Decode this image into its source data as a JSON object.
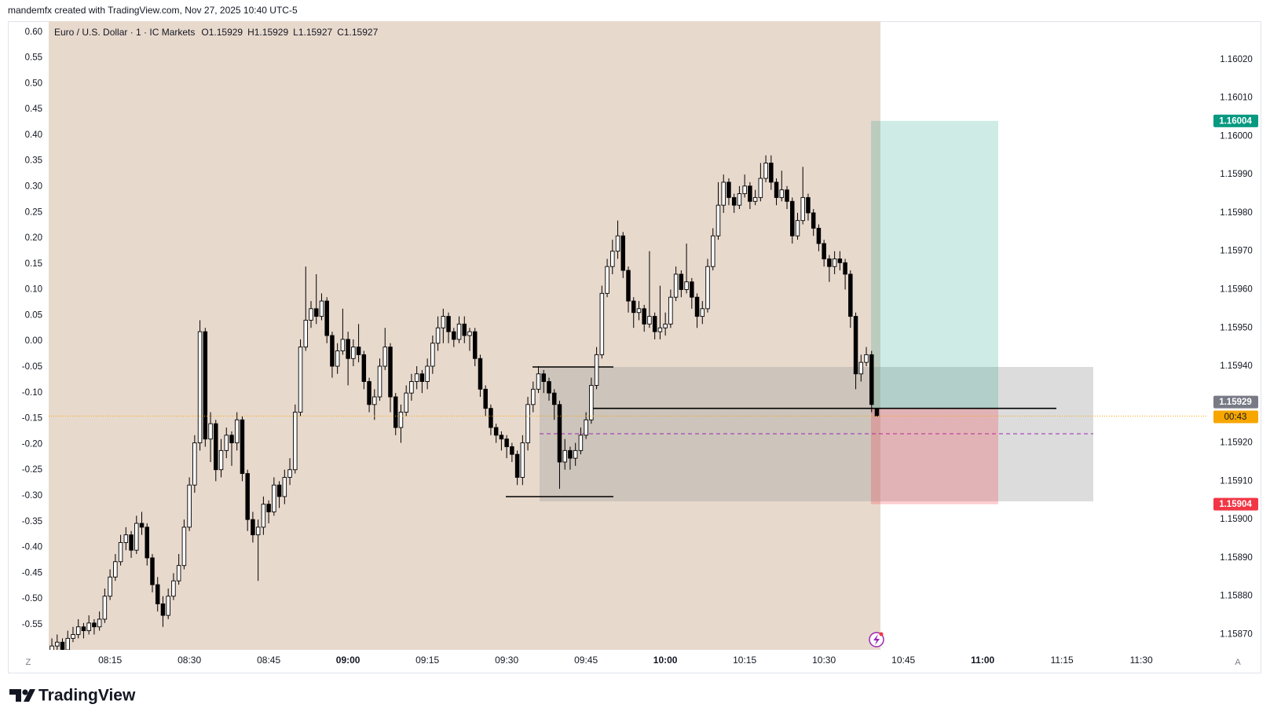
{
  "header": {
    "caption": "mandemfx created with TradingView.com, Nov 27, 2025 10:40 UTC-5"
  },
  "chart_data": {
    "type": "candlestick",
    "symbol": "Euro / U.S. Dollar · 1 · IC Markets",
    "legend_values": [
      "O1.15929",
      "H1.15929",
      "L1.15927",
      "C1.15927"
    ],
    "x": [
      484,
      485,
      486,
      487,
      488,
      489,
      490,
      491,
      492,
      493,
      494,
      495,
      496,
      497,
      498,
      499,
      500,
      501,
      502,
      503,
      504,
      505,
      506,
      507,
      508,
      509,
      510,
      511,
      512,
      513,
      514,
      515,
      516,
      517,
      518,
      519,
      520,
      521,
      522,
      523,
      524,
      525,
      526,
      527,
      528,
      529,
      530,
      531,
      532,
      533,
      534,
      535,
      536,
      537,
      538,
      539,
      540,
      541,
      542,
      543,
      544,
      545,
      546,
      547,
      548,
      549,
      550,
      551,
      552,
      553,
      554,
      555,
      556,
      557,
      558,
      559,
      560,
      561,
      562,
      563,
      564,
      565,
      566,
      567,
      568,
      569,
      570,
      571,
      572,
      573,
      574,
      575,
      576,
      577,
      578,
      579,
      580,
      581,
      582,
      583,
      584,
      585,
      586,
      587,
      588,
      589,
      590,
      591,
      592,
      593,
      594,
      595,
      596,
      597,
      598,
      599,
      600,
      601,
      602,
      603,
      604,
      605,
      606,
      607,
      608,
      609,
      610,
      611,
      612,
      613,
      614,
      615,
      616,
      617,
      618,
      619,
      620,
      621,
      622,
      623,
      624,
      625,
      626,
      627,
      628,
      629,
      630,
      631,
      632,
      633,
      634,
      635,
      636,
      637,
      638,
      639,
      640
    ],
    "candles": [
      [
        1.15865,
        1.15869,
        1.15863,
        1.15867
      ],
      [
        1.15867,
        1.1587,
        1.15866,
        1.15868
      ],
      [
        1.15868,
        1.15869,
        1.15864,
        1.15866
      ],
      [
        1.15866,
        1.15871,
        1.15865,
        1.15869
      ],
      [
        1.15869,
        1.15872,
        1.15868,
        1.1587
      ],
      [
        1.1587,
        1.15874,
        1.15869,
        1.15872
      ],
      [
        1.15872,
        1.15873,
        1.15869,
        1.15871
      ],
      [
        1.15871,
        1.15875,
        1.1587,
        1.15873
      ],
      [
        1.15873,
        1.15874,
        1.1587,
        1.15872
      ],
      [
        1.15872,
        1.15876,
        1.15871,
        1.15874
      ],
      [
        1.15874,
        1.15882,
        1.15873,
        1.1588
      ],
      [
        1.1588,
        1.15887,
        1.15879,
        1.15885
      ],
      [
        1.15885,
        1.15891,
        1.15884,
        1.15889
      ],
      [
        1.15889,
        1.15896,
        1.15888,
        1.15894
      ],
      [
        1.15894,
        1.15898,
        1.15892,
        1.15896
      ],
      [
        1.15896,
        1.15897,
        1.1589,
        1.15892
      ],
      [
        1.15892,
        1.15901,
        1.15891,
        1.15899
      ],
      [
        1.15899,
        1.15902,
        1.15896,
        1.15898
      ],
      [
        1.15898,
        1.15899,
        1.15888,
        1.1589
      ],
      [
        1.1589,
        1.15891,
        1.15881,
        1.15883
      ],
      [
        1.15883,
        1.15885,
        1.15876,
        1.15878
      ],
      [
        1.15878,
        1.1588,
        1.15872,
        1.15875
      ],
      [
        1.15875,
        1.15882,
        1.15874,
        1.1588
      ],
      [
        1.1588,
        1.15886,
        1.15879,
        1.15884
      ],
      [
        1.15884,
        1.15891,
        1.15883,
        1.15888
      ],
      [
        1.15888,
        1.159,
        1.15887,
        1.15898
      ],
      [
        1.15898,
        1.15911,
        1.15897,
        1.15909
      ],
      [
        1.15909,
        1.15922,
        1.15907,
        1.1592
      ],
      [
        1.1592,
        1.15952,
        1.15918,
        1.15949
      ],
      [
        1.15949,
        1.1595,
        1.15919,
        1.15921
      ],
      [
        1.15921,
        1.15928,
        1.15915,
        1.15925
      ],
      [
        1.15925,
        1.15926,
        1.1591,
        1.15913
      ],
      [
        1.15913,
        1.15921,
        1.15911,
        1.15918
      ],
      [
        1.15918,
        1.15924,
        1.15916,
        1.15922
      ],
      [
        1.15922,
        1.15923,
        1.15914,
        1.1592
      ],
      [
        1.1592,
        1.15928,
        1.15918,
        1.15926
      ],
      [
        1.15926,
        1.15927,
        1.1591,
        1.15912
      ],
      [
        1.15912,
        1.15913,
        1.15897,
        1.159
      ],
      [
        1.159,
        1.15902,
        1.15894,
        1.15896
      ],
      [
        1.15896,
        1.159,
        1.15884,
        1.15898
      ],
      [
        1.15898,
        1.15906,
        1.15896,
        1.15904
      ],
      [
        1.15904,
        1.15905,
        1.15899,
        1.15902
      ],
      [
        1.15902,
        1.15911,
        1.15901,
        1.15909
      ],
      [
        1.15909,
        1.1591,
        1.15903,
        1.15906
      ],
      [
        1.15906,
        1.15913,
        1.15904,
        1.15911
      ],
      [
        1.15911,
        1.15916,
        1.15909,
        1.15913
      ],
      [
        1.15913,
        1.1593,
        1.15912,
        1.15928
      ],
      [
        1.15928,
        1.15947,
        1.15927,
        1.15945
      ],
      [
        1.15945,
        1.15966,
        1.15944,
        1.15952
      ],
      [
        1.15952,
        1.15957,
        1.1595,
        1.15955
      ],
      [
        1.15955,
        1.15964,
        1.15951,
        1.15953
      ],
      [
        1.15953,
        1.15959,
        1.15952,
        1.15957
      ],
      [
        1.15957,
        1.15958,
        1.15946,
        1.15948
      ],
      [
        1.15948,
        1.15949,
        1.15937,
        1.1594
      ],
      [
        1.1594,
        1.15946,
        1.15938,
        1.15944
      ],
      [
        1.15944,
        1.15955,
        1.15943,
        1.15947
      ],
      [
        1.15947,
        1.15949,
        1.15935,
        1.15942
      ],
      [
        1.15942,
        1.15947,
        1.1594,
        1.15945
      ],
      [
        1.15945,
        1.15951,
        1.15941,
        1.15943
      ],
      [
        1.15943,
        1.15944,
        1.15934,
        1.15936
      ],
      [
        1.15936,
        1.15937,
        1.15928,
        1.1593
      ],
      [
        1.1593,
        1.15934,
        1.15926,
        1.15932
      ],
      [
        1.15932,
        1.15942,
        1.15931,
        1.1594
      ],
      [
        1.1594,
        1.1595,
        1.15939,
        1.15945
      ],
      [
        1.15945,
        1.15946,
        1.15928,
        1.15932
      ],
      [
        1.15932,
        1.15933,
        1.15922,
        1.15924
      ],
      [
        1.15924,
        1.1593,
        1.1592,
        1.15928
      ],
      [
        1.15928,
        1.15935,
        1.15927,
        1.15933
      ],
      [
        1.15933,
        1.15938,
        1.15931,
        1.15936
      ],
      [
        1.15936,
        1.1594,
        1.15934,
        1.15938
      ],
      [
        1.15938,
        1.15939,
        1.15933,
        1.15936
      ],
      [
        1.15936,
        1.15942,
        1.15934,
        1.1594
      ],
      [
        1.1594,
        1.15948,
        1.15938,
        1.15946
      ],
      [
        1.15946,
        1.15953,
        1.15944,
        1.1595
      ],
      [
        1.1595,
        1.15955,
        1.15946,
        1.15953
      ],
      [
        1.15953,
        1.15954,
        1.15946,
        1.15949
      ],
      [
        1.15949,
        1.1595,
        1.15945,
        1.15947
      ],
      [
        1.15947,
        1.15953,
        1.15946,
        1.15951
      ],
      [
        1.15951,
        1.15953,
        1.15946,
        1.15948
      ],
      [
        1.15948,
        1.1595,
        1.15944,
        1.15949
      ],
      [
        1.15949,
        1.1595,
        1.1594,
        1.15942
      ],
      [
        1.15942,
        1.15943,
        1.15932,
        1.15934
      ],
      [
        1.15934,
        1.15935,
        1.15927,
        1.15929
      ],
      [
        1.15929,
        1.1593,
        1.15922,
        1.15924
      ],
      [
        1.15924,
        1.15925,
        1.1592,
        1.15922
      ],
      [
        1.15922,
        1.15923,
        1.15918,
        1.15921
      ],
      [
        1.15921,
        1.15922,
        1.15916,
        1.15919
      ],
      [
        1.15919,
        1.1592,
        1.15915,
        1.15917
      ],
      [
        1.15917,
        1.15918,
        1.15909,
        1.15911
      ],
      [
        1.15911,
        1.15922,
        1.15909,
        1.1592
      ],
      [
        1.1592,
        1.15932,
        1.15918,
        1.1593
      ],
      [
        1.1593,
        1.15936,
        1.15928,
        1.15934
      ],
      [
        1.15934,
        1.1594,
        1.15933,
        1.15938
      ],
      [
        1.15938,
        1.15939,
        1.15933,
        1.15936
      ],
      [
        1.15936,
        1.15937,
        1.15931,
        1.15933
      ],
      [
        1.15933,
        1.15934,
        1.15926,
        1.1593
      ],
      [
        1.1593,
        1.15931,
        1.15908,
        1.15915
      ],
      [
        1.15915,
        1.15921,
        1.15913,
        1.15918
      ],
      [
        1.15918,
        1.15919,
        1.15913,
        1.15916
      ],
      [
        1.15916,
        1.1592,
        1.15914,
        1.15918
      ],
      [
        1.15918,
        1.15924,
        1.15917,
        1.15922
      ],
      [
        1.15922,
        1.15928,
        1.15921,
        1.15926
      ],
      [
        1.15926,
        1.15937,
        1.15925,
        1.15935
      ],
      [
        1.15935,
        1.15945,
        1.15934,
        1.15943
      ],
      [
        1.15943,
        1.15961,
        1.15942,
        1.15959
      ],
      [
        1.15959,
        1.15968,
        1.15958,
        1.15966
      ],
      [
        1.15966,
        1.15973,
        1.15964,
        1.1597
      ],
      [
        1.1597,
        1.15978,
        1.15968,
        1.15974
      ],
      [
        1.15974,
        1.15975,
        1.15963,
        1.15965
      ],
      [
        1.15965,
        1.15966,
        1.15954,
        1.15957
      ],
      [
        1.15957,
        1.15958,
        1.1595,
        1.15954
      ],
      [
        1.15954,
        1.15957,
        1.15952,
        1.15955
      ],
      [
        1.15955,
        1.15956,
        1.15949,
        1.15951
      ],
      [
        1.15951,
        1.1597,
        1.1595,
        1.15953
      ],
      [
        1.15953,
        1.15954,
        1.15947,
        1.15949
      ],
      [
        1.15949,
        1.15961,
        1.15947,
        1.1595
      ],
      [
        1.1595,
        1.15954,
        1.15948,
        1.15951
      ],
      [
        1.15951,
        1.1596,
        1.1595,
        1.15958
      ],
      [
        1.15958,
        1.15966,
        1.15957,
        1.15964
      ],
      [
        1.15964,
        1.15965,
        1.15958,
        1.1596
      ],
      [
        1.1596,
        1.15972,
        1.15959,
        1.15962
      ],
      [
        1.15962,
        1.15963,
        1.15955,
        1.15958
      ],
      [
        1.15958,
        1.15959,
        1.1595,
        1.15953
      ],
      [
        1.15953,
        1.15957,
        1.15951,
        1.15955
      ],
      [
        1.15955,
        1.15968,
        1.15954,
        1.15966
      ],
      [
        1.15966,
        1.15976,
        1.15965,
        1.15974
      ],
      [
        1.15974,
        1.15988,
        1.15973,
        1.15982
      ],
      [
        1.15982,
        1.1599,
        1.1598,
        1.15988
      ],
      [
        1.15988,
        1.15989,
        1.15982,
        1.15984
      ],
      [
        1.15984,
        1.15985,
        1.1598,
        1.15982
      ],
      [
        1.15982,
        1.15987,
        1.15981,
        1.15985
      ],
      [
        1.15985,
        1.1599,
        1.15984,
        1.15987
      ],
      [
        1.15987,
        1.15988,
        1.15981,
        1.15983
      ],
      [
        1.15983,
        1.15986,
        1.15982,
        1.15984
      ],
      [
        1.15984,
        1.15993,
        1.15983,
        1.15989
      ],
      [
        1.15989,
        1.15995,
        1.15988,
        1.15993
      ],
      [
        1.15993,
        1.15995,
        1.15986,
        1.15988
      ],
      [
        1.15988,
        1.15989,
        1.15982,
        1.15984
      ],
      [
        1.15984,
        1.15991,
        1.15983,
        1.15986
      ],
      [
        1.15986,
        1.15987,
        1.15981,
        1.15983
      ],
      [
        1.15983,
        1.15984,
        1.15972,
        1.15974
      ],
      [
        1.15974,
        1.1598,
        1.15973,
        1.15978
      ],
      [
        1.15978,
        1.15992,
        1.15977,
        1.15984
      ],
      [
        1.15984,
        1.15985,
        1.15978,
        1.1598
      ],
      [
        1.1598,
        1.15981,
        1.15974,
        1.15976
      ],
      [
        1.15976,
        1.15977,
        1.1597,
        1.15972
      ],
      [
        1.15972,
        1.15973,
        1.15966,
        1.15968
      ],
      [
        1.15968,
        1.15969,
        1.15962,
        1.15966
      ],
      [
        1.15966,
        1.1597,
        1.15964,
        1.15968
      ],
      [
        1.15968,
        1.1597,
        1.15965,
        1.15967
      ],
      [
        1.15967,
        1.15968,
        1.1596,
        1.15964
      ],
      [
        1.15964,
        1.15965,
        1.1595,
        1.15953
      ],
      [
        1.15953,
        1.15954,
        1.15934,
        1.15938
      ],
      [
        1.15938,
        1.15943,
        1.15936,
        1.15941
      ],
      [
        1.15941,
        1.15945,
        1.1594,
        1.15943
      ],
      [
        1.15943,
        1.15944,
        1.15928,
        1.1593
      ],
      [
        1.15929,
        1.15929,
        1.15927,
        1.15927
      ]
    ],
    "up_color": "#ffffff",
    "down_color": "#000000",
    "xlim": [
      483.4,
      702.3
    ],
    "xticks": [
      {
        "value": 495,
        "label": "08:15"
      },
      {
        "value": 510,
        "label": "08:30"
      },
      {
        "value": 525,
        "label": "08:45"
      },
      {
        "value": 540,
        "label": "09:00"
      },
      {
        "value": 555,
        "label": "09:15"
      },
      {
        "value": 570,
        "label": "09:30"
      },
      {
        "value": 585,
        "label": "09:45"
      },
      {
        "value": 600,
        "label": "10:00"
      },
      {
        "value": 615,
        "label": "10:15"
      },
      {
        "value": 630,
        "label": "10:30"
      },
      {
        "value": 645,
        "label": "10:45"
      },
      {
        "value": 660,
        "label": "11:00"
      },
      {
        "value": 675,
        "label": "11:15"
      },
      {
        "value": 690,
        "label": "11:30"
      }
    ],
    "ylim": [
      1.15866,
      1.1603
    ],
    "yticks": [
      {
        "value": 1.1587,
        "label": "1.15870"
      },
      {
        "value": 1.1588,
        "label": "1.15880"
      },
      {
        "value": 1.1589,
        "label": "1.15890"
      },
      {
        "value": 1.159,
        "label": "1.15900"
      },
      {
        "value": 1.1591,
        "label": "1.15910"
      },
      {
        "value": 1.1592,
        "label": "1.15920"
      },
      {
        "value": 1.1593,
        "label": "1.15930"
      },
      {
        "value": 1.1594,
        "label": "1.15940"
      },
      {
        "value": 1.1595,
        "label": "1.15950"
      },
      {
        "value": 1.1596,
        "label": "1.15960"
      },
      {
        "value": 1.1597,
        "label": "1.15970"
      },
      {
        "value": 1.1598,
        "label": "1.15980"
      },
      {
        "value": 1.1599,
        "label": "1.15990"
      },
      {
        "value": 1.16,
        "label": "1.16000"
      },
      {
        "value": 1.1601,
        "label": "1.16010"
      },
      {
        "value": 1.1602,
        "label": "1.16020"
      }
    ],
    "y2lim": [
      -0.599,
      0.621
    ],
    "y2ticks": [
      {
        "value": 0.6,
        "label": "0.60"
      },
      0.55,
      {
        "value": 0.5,
        "label": "0.50"
      },
      0.45,
      {
        "value": 0.4,
        "label": "0.40"
      },
      0.35,
      {
        "value": 0.3,
        "label": "0.30"
      },
      0.25,
      {
        "value": 0.2,
        "label": "0.20"
      },
      0.15,
      {
        "value": 0.1,
        "label": "0.10"
      },
      0.05,
      {
        "value": 0,
        "label": "0.00"
      },
      -0.05,
      {
        "value": -0.1,
        "label": "-0.10"
      },
      -0.15,
      {
        "value": -0.2,
        "label": "-0.20"
      },
      -0.25,
      {
        "value": -0.3,
        "label": "-0.30"
      },
      -0.35,
      {
        "value": -0.4,
        "label": "-0.40"
      },
      -0.45,
      {
        "value": -0.5,
        "label": "-0.50"
      },
      -0.55
    ],
    "take_profit": 1.16004,
    "entry": 1.15929,
    "stop_loss": 1.15904,
    "countdown": "00:43",
    "corner_left": "Z",
    "corner_right": "A"
  },
  "footer": {
    "brand": "TradingView"
  }
}
